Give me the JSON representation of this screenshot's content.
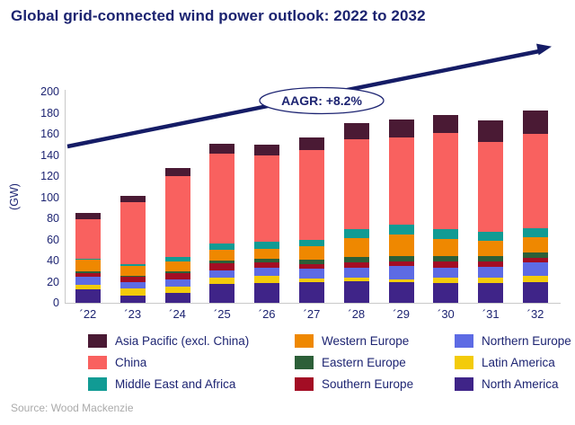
{
  "title": "Global grid-connected wind power outlook: 2022 to 2032",
  "source": "Source: Wood Mackenzie",
  "colors": {
    "title_navy": "#1b2370",
    "text_navy": "#1d2472",
    "arrow_navy": "#151c66",
    "axis_gray": "#c9c9c9",
    "source_gray": "#ababab"
  },
  "chart_data": {
    "type": "bar",
    "stacked": true,
    "title": "Global grid-connected wind power outlook: 2022 to 2032",
    "xlabel": "",
    "ylabel": "(GW)",
    "ylim": [
      0,
      200
    ],
    "ytick_step": 20,
    "grid": false,
    "legend_position": "bottom",
    "annotation": "AAGR: +8.2%",
    "categories": [
      "´22",
      "´23",
      "´24",
      "´25",
      "´26",
      "´27",
      "´28",
      "´29",
      "´30",
      "´31",
      "´32"
    ],
    "series": [
      {
        "name": "North America",
        "color": "#3f2488",
        "values": [
          13,
          7,
          9,
          17.5,
          18.5,
          19.5,
          20.5,
          19.5,
          19,
          18.5,
          20
        ]
      },
      {
        "name": "Latin America",
        "color": "#f3cb0a",
        "values": [
          4,
          6.5,
          6,
          6.5,
          7,
          3.5,
          3,
          3,
          4.5,
          5,
          5.5
        ]
      },
      {
        "name": "Northern Europe",
        "color": "#5d6be4",
        "values": [
          8,
          6.5,
          7,
          7,
          8,
          9,
          10,
          12,
          10,
          10.5,
          13
        ]
      },
      {
        "name": "Southern Europe",
        "color": "#a30d24",
        "values": [
          3.5,
          4.5,
          6,
          6.5,
          5,
          5,
          5,
          4.5,
          5.5,
          5,
          4.5
        ]
      },
      {
        "name": "Eastern Europe",
        "color": "#2c5f38",
        "values": [
          1,
          1,
          2,
          2.5,
          3.5,
          3.5,
          5,
          5.5,
          5,
          5.5,
          5
        ]
      },
      {
        "name": "Western Europe",
        "color": "#ef8800",
        "values": [
          11,
          9.5,
          9,
          10.5,
          9,
          13,
          17.5,
          20,
          16.5,
          14.5,
          14
        ]
      },
      {
        "name": "Middle East and Africa",
        "color": "#119b94",
        "values": [
          1.5,
          1.5,
          4.5,
          5.5,
          6.5,
          6.5,
          8.5,
          9.5,
          9.5,
          8.5,
          8.5
        ]
      },
      {
        "name": "China",
        "color": "#f9615f",
        "values": [
          37,
          58.5,
          76.5,
          85.5,
          82,
          85,
          85,
          83,
          90.5,
          84.5,
          89.5
        ]
      },
      {
        "name": "Asia Pacific (excl. China)",
        "color": "#4a1a34",
        "values": [
          6,
          6,
          8,
          9.5,
          10.5,
          12,
          15.5,
          17,
          17.5,
          21,
          22
        ]
      }
    ],
    "totals": [
      85,
      101,
      128,
      151,
      150,
      157,
      170,
      174,
      178,
      173,
      182
    ],
    "legend_order": [
      "Asia Pacific (excl. China)",
      "Western Europe",
      "Northern Europe",
      "China",
      "Eastern Europe",
      "Latin America",
      "Middle East and Africa",
      "Southern Europe",
      "North America"
    ]
  }
}
